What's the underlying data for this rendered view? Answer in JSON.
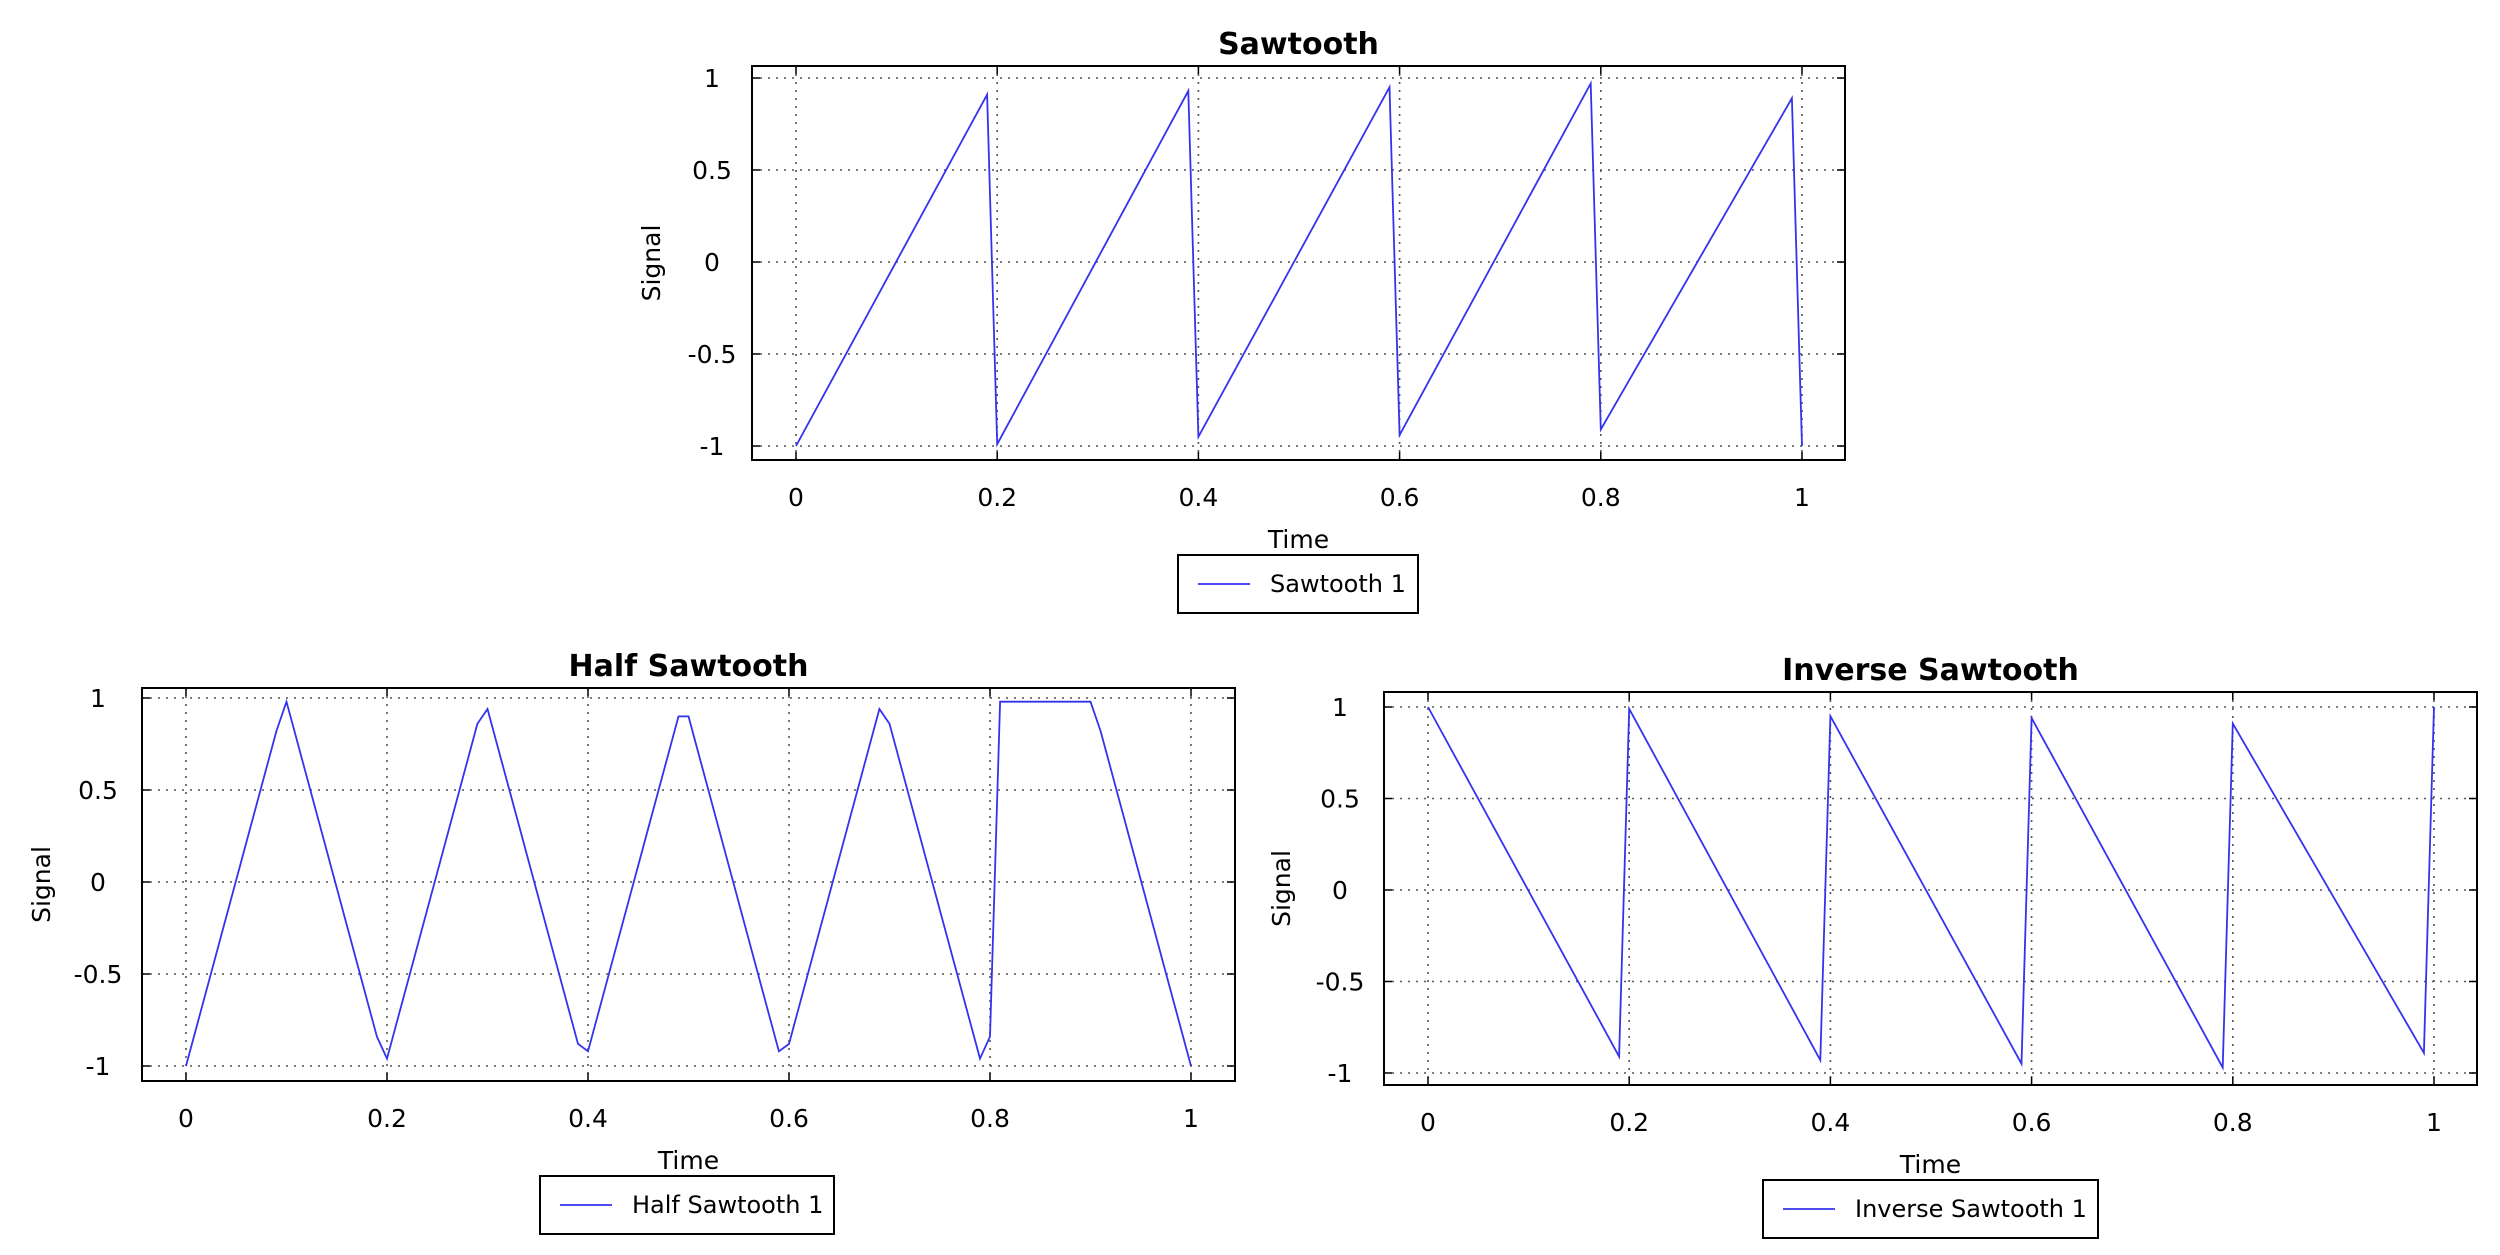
{
  "chart_data": [
    {
      "type": "line",
      "title": "Sawtooth",
      "xlabel": "Time",
      "ylabel": "Signal",
      "xlim": [
        0,
        1
      ],
      "ylim": [
        -1,
        1
      ],
      "xticks": [
        "0",
        "0.2",
        "0.4",
        "0.6",
        "0.8",
        "1"
      ],
      "yticks": [
        "1",
        "0.5",
        "0",
        "-0.5",
        "-1"
      ],
      "grid": true,
      "legend_position": "bottom",
      "series": [
        {
          "name": "Sawtooth 1",
          "color": "#3333ee",
          "x": [
            0,
            0.19,
            0.2,
            0.39,
            0.4,
            0.59,
            0.6,
            0.79,
            0.8,
            0.99,
            1.0
          ],
          "y": [
            -1,
            0.91,
            -0.99,
            0.93,
            -0.95,
            0.95,
            -0.94,
            0.97,
            -0.91,
            0.89,
            -1
          ]
        }
      ]
    },
    {
      "type": "line",
      "title": "Half Sawtooth",
      "xlabel": "Time",
      "ylabel": "Signal",
      "xlim": [
        0,
        1
      ],
      "ylim": [
        -1,
        1
      ],
      "xticks": [
        "0",
        "0.2",
        "0.4",
        "0.6",
        "0.8",
        "1"
      ],
      "yticks": [
        "1",
        "0.5",
        "0",
        "-0.5",
        "-1"
      ],
      "grid": true,
      "legend_position": "bottom",
      "series": [
        {
          "name": "Half Sawtooth 1",
          "color": "#3333ee",
          "x": [
            0,
            0.09,
            0.1,
            0.19,
            0.2,
            0.29,
            0.3,
            0.39,
            0.4,
            0.49,
            0.5,
            0.59,
            0.6,
            0.69,
            0.7,
            0.79,
            0.8,
            0.81,
            0.9,
            0.91,
            1.0
          ],
          "y": [
            -1,
            0.82,
            0.98,
            -0.84,
            -0.96,
            0.86,
            0.94,
            -0.88,
            -0.92,
            0.9,
            0.9,
            -0.92,
            -0.88,
            0.94,
            0.86,
            -0.96,
            -0.84,
            0.98,
            0.98,
            0.82,
            -1
          ]
        }
      ]
    },
    {
      "type": "line",
      "title": "Inverse Sawtooth",
      "xlabel": "Time",
      "ylabel": "Signal",
      "xlim": [
        0,
        1
      ],
      "ylim": [
        -1,
        1
      ],
      "xticks": [
        "0",
        "0.2",
        "0.4",
        "0.6",
        "0.8",
        "1"
      ],
      "yticks": [
        "1",
        "0.5",
        "0",
        "-0.5",
        "-1"
      ],
      "grid": true,
      "legend_position": "bottom",
      "series": [
        {
          "name": "Inverse Sawtooth 1",
          "color": "#3333ee",
          "x": [
            0,
            0.19,
            0.2,
            0.39,
            0.4,
            0.59,
            0.6,
            0.79,
            0.8,
            0.99,
            1.0
          ],
          "y": [
            1,
            -0.91,
            0.99,
            -0.93,
            0.95,
            -0.95,
            0.94,
            -0.97,
            0.91,
            -0.89,
            1
          ]
        }
      ]
    }
  ]
}
